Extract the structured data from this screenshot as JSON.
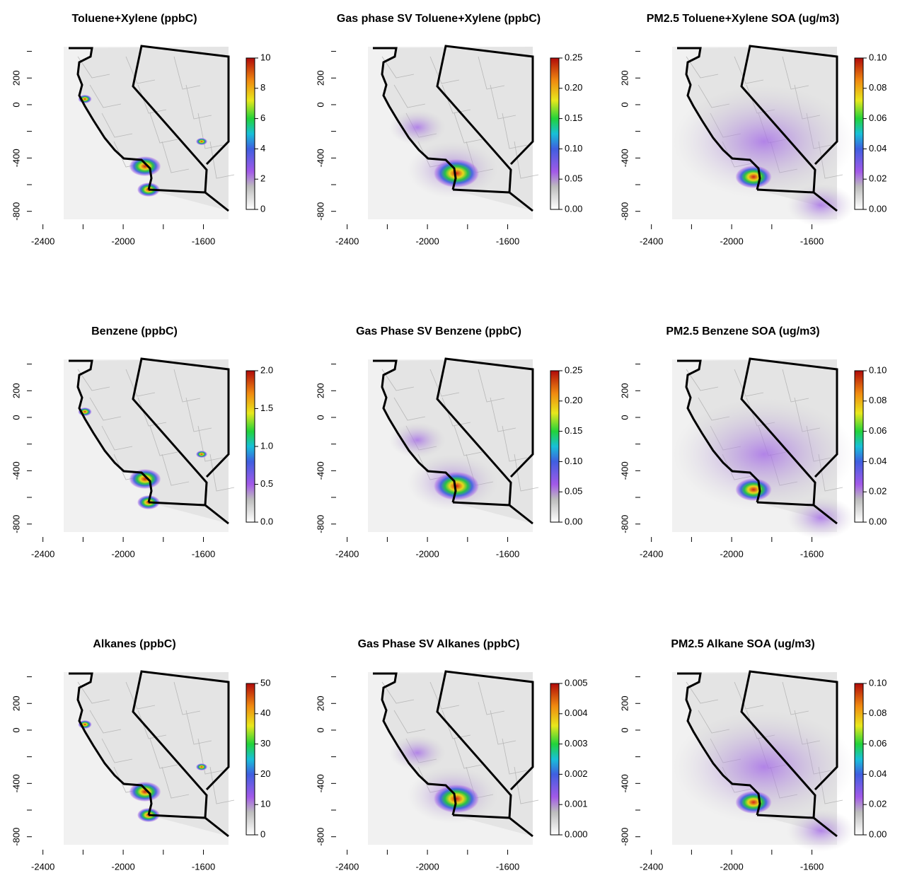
{
  "chart_data": [
    {
      "type": "map",
      "title": "Toluene+Xylene (ppbC)",
      "xlim": [
        -2420,
        -1475
      ],
      "ylim": [
        -860,
        435
      ],
      "xticks": [
        -2400,
        -2000,
        -1600
      ],
      "xminor": [
        -2200,
        -1800
      ],
      "yticks": [
        200,
        0,
        -400,
        -800
      ],
      "yminor": [
        400,
        -200,
        -600
      ],
      "colorbar": {
        "lim": [
          0,
          10
        ],
        "ticks": [
          0,
          2,
          4,
          6,
          8,
          10
        ]
      }
    },
    {
      "type": "map",
      "title": "Gas phase SV Toluene+Xylene (ppbC)",
      "xlim": [
        -2420,
        -1475
      ],
      "ylim": [
        -860,
        435
      ],
      "xticks": [
        -2400,
        -2000,
        -1600
      ],
      "xminor": [
        -2200,
        -1800
      ],
      "yticks": [
        200,
        0,
        -400,
        -800
      ],
      "yminor": [
        400,
        -200,
        -600
      ],
      "colorbar": {
        "lim": [
          0,
          0.25
        ],
        "ticks": [
          {
            "value": 0,
            "label": "0.00"
          },
          0.05,
          {
            "value": 0.1,
            "label": "0.10"
          },
          0.15,
          {
            "value": 0.2,
            "label": "0.20"
          },
          0.25
        ]
      }
    },
    {
      "type": "map",
      "title": "PM2.5 Toluene+Xylene SOA (ug/m3)",
      "xlim": [
        -2420,
        -1475
      ],
      "ylim": [
        -860,
        435
      ],
      "xticks": [
        -2400,
        -2000,
        -1600
      ],
      "xminor": [
        -2200,
        -1800
      ],
      "yticks": [
        200,
        0,
        -400,
        -800
      ],
      "yminor": [
        400,
        -200,
        -600
      ],
      "colorbar": {
        "lim": [
          0,
          0.1
        ],
        "ticks": [
          {
            "value": 0,
            "label": "0.00"
          },
          0.02,
          0.04,
          0.06,
          0.08,
          {
            "value": 0.1,
            "label": "0.10"
          }
        ]
      }
    },
    {
      "type": "map",
      "title": "Benzene (ppbC)",
      "xlim": [
        -2420,
        -1475
      ],
      "ylim": [
        -860,
        435
      ],
      "xticks": [
        -2400,
        -2000,
        -1600
      ],
      "xminor": [
        -2200,
        -1800
      ],
      "yticks": [
        200,
        0,
        -400,
        -800
      ],
      "yminor": [
        400,
        -200,
        -600
      ],
      "colorbar": {
        "lim": [
          0,
          2
        ],
        "ticks": [
          {
            "value": 0,
            "label": "0.0"
          },
          0.5,
          {
            "value": 1,
            "label": "1.0"
          },
          1.5,
          {
            "value": 2,
            "label": "2.0"
          }
        ]
      }
    },
    {
      "type": "map",
      "title": "Gas Phase SV Benzene (ppbC)",
      "xlim": [
        -2420,
        -1475
      ],
      "ylim": [
        -860,
        435
      ],
      "xticks": [
        -2400,
        -2000,
        -1600
      ],
      "xminor": [
        -2200,
        -1800
      ],
      "yticks": [
        200,
        0,
        -400,
        -800
      ],
      "yminor": [
        400,
        -200,
        -600
      ],
      "colorbar": {
        "lim": [
          0,
          0.25
        ],
        "ticks": [
          {
            "value": 0,
            "label": "0.00"
          },
          0.05,
          {
            "value": 0.1,
            "label": "0.10"
          },
          0.15,
          {
            "value": 0.2,
            "label": "0.20"
          },
          0.25
        ]
      }
    },
    {
      "type": "map",
      "title": "PM2.5 Benzene SOA (ug/m3)",
      "xlim": [
        -2420,
        -1475
      ],
      "ylim": [
        -860,
        435
      ],
      "xticks": [
        -2400,
        -2000,
        -1600
      ],
      "xminor": [
        -2200,
        -1800
      ],
      "yticks": [
        200,
        0,
        -400,
        -800
      ],
      "yminor": [
        400,
        -200,
        -600
      ],
      "colorbar": {
        "lim": [
          0,
          0.1
        ],
        "ticks": [
          {
            "value": 0,
            "label": "0.00"
          },
          0.02,
          0.04,
          0.06,
          0.08,
          {
            "value": 0.1,
            "label": "0.10"
          }
        ]
      }
    },
    {
      "type": "map",
      "title": "Alkanes (ppbC)",
      "xlim": [
        -2420,
        -1475
      ],
      "ylim": [
        -860,
        435
      ],
      "xticks": [
        -2400,
        -2000,
        -1600
      ],
      "xminor": [
        -2200,
        -1800
      ],
      "yticks": [
        200,
        0,
        -400,
        -800
      ],
      "yminor": [
        400,
        -200,
        -600
      ],
      "colorbar": {
        "lim": [
          0,
          50
        ],
        "ticks": [
          0,
          10,
          20,
          30,
          40,
          50
        ]
      }
    },
    {
      "type": "map",
      "title": "Gas Phase SV Alkanes (ppbC)",
      "xlim": [
        -2420,
        -1475
      ],
      "ylim": [
        -860,
        435
      ],
      "xticks": [
        -2400,
        -2000,
        -1600
      ],
      "xminor": [
        -2200,
        -1800
      ],
      "yticks": [
        200,
        0,
        -400,
        -800
      ],
      "yminor": [
        400,
        -200,
        -600
      ],
      "colorbar": {
        "lim": [
          0,
          0.005
        ],
        "ticks": [
          {
            "value": 0,
            "label": "0.000"
          },
          0.001,
          0.002,
          0.003,
          0.004,
          0.005
        ]
      }
    },
    {
      "type": "map",
      "title": "PM2.5 Alkane SOA (ug/m3)",
      "xlim": [
        -2420,
        -1475
      ],
      "ylim": [
        -860,
        435
      ],
      "xticks": [
        -2400,
        -2000,
        -1600
      ],
      "xminor": [
        -2200,
        -1800
      ],
      "yticks": [
        200,
        0,
        -400,
        -800
      ],
      "yminor": [
        400,
        -200,
        -600
      ],
      "colorbar": {
        "lim": [
          0,
          0.1
        ],
        "ticks": [
          {
            "value": 0,
            "label": "0.00"
          },
          0.02,
          0.04,
          0.06,
          0.08,
          {
            "value": 0.1,
            "label": "0.10"
          }
        ]
      }
    }
  ]
}
